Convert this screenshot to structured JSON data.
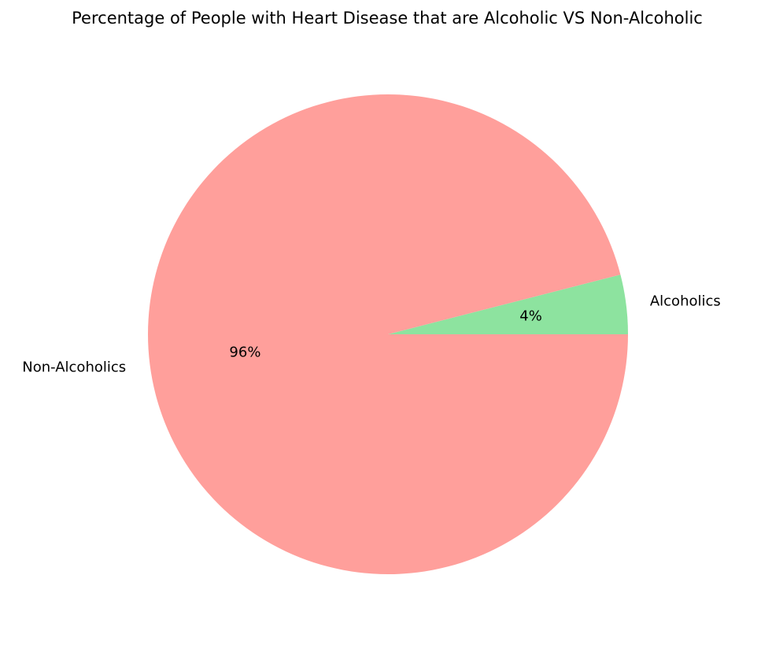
{
  "chart_data": {
    "type": "pie",
    "title": "Percentage of People with Heart Disease that are Alcoholic VS Non-Alcoholic",
    "slices": [
      {
        "label": "Alcoholics",
        "value": 4,
        "pct_label": "4%",
        "color": "#8de39f"
      },
      {
        "label": "Non-Alcoholics",
        "value": 96,
        "pct_label": "96%",
        "color": "#ff9f9b"
      }
    ],
    "start_angle_deg": 0,
    "direction": "counterclockwise"
  }
}
